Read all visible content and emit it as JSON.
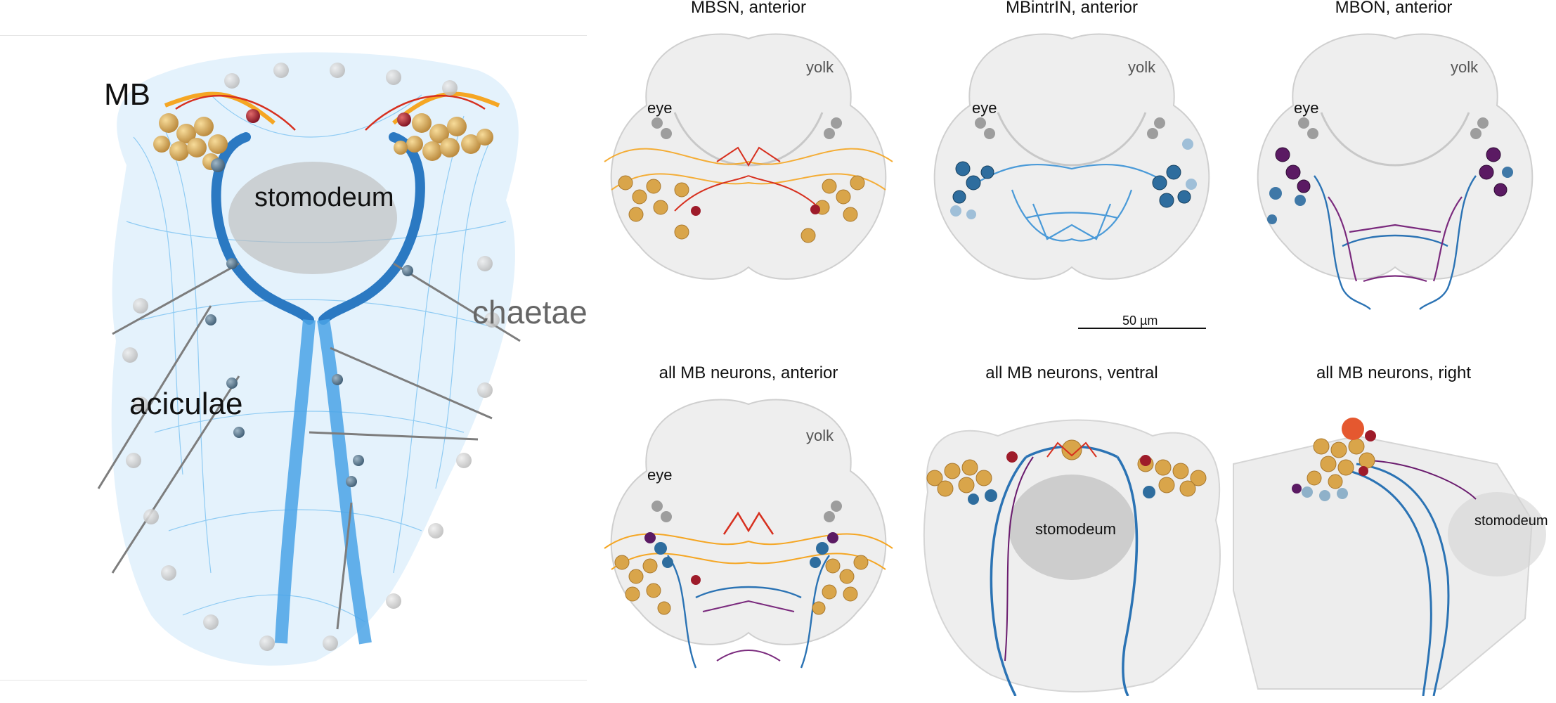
{
  "main": {
    "labels": {
      "mb": "MB",
      "stomodeum": "stomodeum",
      "chaetae": "chaetae",
      "aciculae": "aciculae"
    }
  },
  "panels": [
    {
      "title": "MBSN, anterior",
      "labels": {
        "yolk": "yolk",
        "eye": "eye"
      }
    },
    {
      "title": "MBintrIN, anterior",
      "labels": {
        "yolk": "yolk",
        "eye": "eye"
      }
    },
    {
      "title": "MBON, anterior",
      "labels": {
        "yolk": "yolk",
        "eye": "eye"
      }
    },
    {
      "title": "all MB neurons, anterior",
      "labels": {
        "yolk": "yolk",
        "eye": "eye"
      }
    },
    {
      "title": "all MB neurons, ventral",
      "labels": {
        "stomodeum": "stomodeum"
      }
    },
    {
      "title": "all MB neurons, right",
      "labels": {
        "stomodeum": "stomodeum"
      }
    }
  ],
  "scale_bar": {
    "label": "50 µm"
  },
  "colors": {
    "background": "#ffffff",
    "mbsn_orange": "#f5a623",
    "mbsn_red": "#d7301f",
    "mbsn_dark_red": "#9e1b2a",
    "mbintrin_blue": "#1f78b4",
    "mbintrin_light_blue": "#8ec9ee",
    "mbon_purple": "#6a1b6e",
    "cell_body_gold": "#d9a54a",
    "cell_body_steel": "#6e8faa",
    "whole_body_blue": "#4aa8e8",
    "tissue_gray": "#cfcfcf",
    "label_gray": "#666666"
  }
}
